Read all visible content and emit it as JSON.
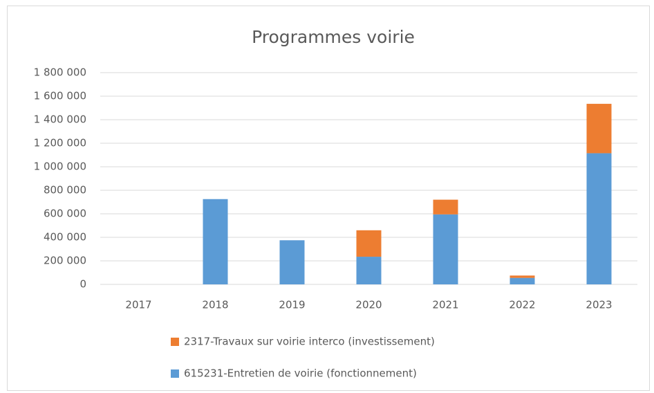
{
  "chart_data": {
    "type": "bar",
    "stacked": true,
    "title": "Programmes voirie",
    "categories": [
      "2017",
      "2018",
      "2019",
      "2020",
      "2021",
      "2022",
      "2023"
    ],
    "series": [
      {
        "name": "615231-Entretien de voirie (fonctionnement)",
        "color": "#5b9bd5",
        "values": [
          0,
          725000,
          375000,
          235000,
          595000,
          55000,
          1115000
        ]
      },
      {
        "name": "2317-Travaux sur voirie interco (investissement)",
        "color": "#ed7d31",
        "values": [
          0,
          0,
          0,
          225000,
          125000,
          20000,
          420000
        ]
      }
    ],
    "ylim": [
      0,
      1800000
    ],
    "yticks": [
      0,
      {
        "value": 200000,
        "label": "200 000"
      },
      {
        "value": 400000,
        "label": "400 000"
      },
      {
        "value": 600000,
        "label": "600 000"
      },
      {
        "value": 800000,
        "label": "800 000"
      },
      {
        "value": 1000000,
        "label": "1 000 000"
      },
      {
        "value": 1200000,
        "label": "1 200 000"
      },
      {
        "value": 1400000,
        "label": "1 400 000"
      },
      {
        "value": 1600000,
        "label": "1 600 000"
      },
      {
        "value": 1800000,
        "label": "1 800 000"
      }
    ],
    "grid": true,
    "legend": "bottom"
  }
}
